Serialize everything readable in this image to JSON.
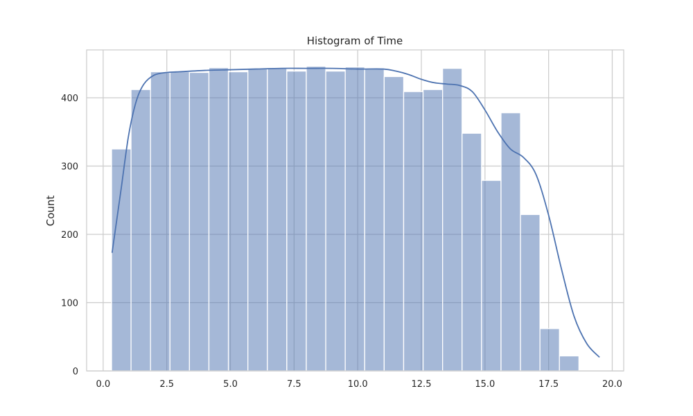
{
  "chart_data": {
    "type": "bar",
    "title": "Histogram of Time",
    "xlabel": "",
    "ylabel": "Count",
    "xlim": [
      -0.65,
      20.45
    ],
    "ylim": [
      0,
      470
    ],
    "xticks": [
      0.0,
      2.5,
      5.0,
      7.5,
      10.0,
      12.5,
      15.0,
      17.5,
      20.0
    ],
    "xtick_labels": [
      "0.0",
      "2.5",
      "5.0",
      "7.5",
      "10.0",
      "12.5",
      "15.0",
      "17.5",
      "20.0"
    ],
    "yticks": [
      0,
      100,
      200,
      300,
      400
    ],
    "ytick_labels": [
      "0",
      "100",
      "200",
      "300",
      "400"
    ],
    "grid": true,
    "bin_edges": [
      0.33,
      1.095,
      1.86,
      2.625,
      3.39,
      4.155,
      4.92,
      5.685,
      6.45,
      7.215,
      7.98,
      8.745,
      9.51,
      10.275,
      11.04,
      11.805,
      12.57,
      13.335,
      14.1,
      14.865,
      15.63,
      16.395,
      17.16,
      17.925,
      18.69,
      19.455
    ],
    "values": [
      325,
      412,
      438,
      438,
      437,
      444,
      438,
      443,
      444,
      439,
      446,
      439,
      445,
      442,
      431,
      409,
      412,
      443,
      348,
      279,
      378,
      229,
      62,
      22,
      0
    ],
    "kde": {
      "x": [
        0.35,
        0.7,
        1.0,
        1.3,
        1.6,
        2.0,
        2.5,
        3.0,
        4.0,
        5.0,
        6.0,
        7.0,
        8.0,
        9.0,
        10.0,
        11.0,
        11.5,
        12.0,
        12.5,
        13.0,
        13.5,
        14.0,
        14.5,
        15.0,
        15.5,
        16.0,
        16.5,
        17.0,
        17.5,
        18.0,
        18.5,
        19.0,
        19.5
      ],
      "y": [
        173,
        265,
        345,
        395,
        420,
        433,
        437,
        438,
        440,
        441,
        442,
        443,
        443,
        443,
        442,
        442,
        439,
        434,
        427,
        422,
        420,
        418,
        409,
        382,
        350,
        325,
        313,
        288,
        228,
        150,
        80,
        40,
        20
      ]
    },
    "bar_color": "#4c72b0",
    "bar_opacity": 0.5,
    "line_color": "#4c72b0"
  }
}
